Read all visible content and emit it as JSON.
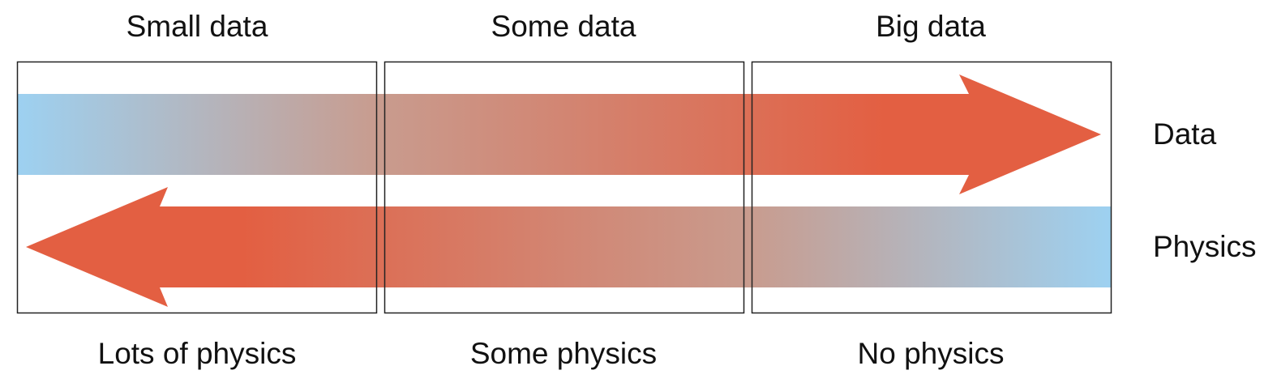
{
  "columns": [
    {
      "top_label": "Small data",
      "bottom_label": "Lots of physics"
    },
    {
      "top_label": "Some data",
      "bottom_label": "Some physics"
    },
    {
      "top_label": "Big data",
      "bottom_label": "No physics"
    }
  ],
  "rows": {
    "data_label": "Data",
    "physics_label": "Physics"
  },
  "colors": {
    "low": "#9dd1f1",
    "mid": "#c89c8f",
    "high": "#e35f42",
    "frame": "#222222"
  }
}
